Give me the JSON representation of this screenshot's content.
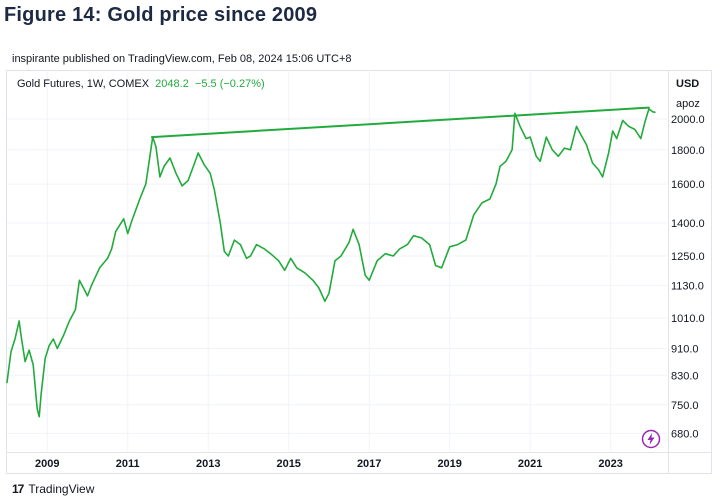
{
  "figure_title": "Figure 14: Gold price since 2009",
  "publisher_line": "inspirante published on TradingView.com, Feb 08, 2024 15:06 UTC+8",
  "legend": {
    "symbol": "Gold Futures, 1W, COMEX",
    "last": "2048.2",
    "change": "−5.5 (−0.27%)"
  },
  "axis": {
    "currency": "USD",
    "timezone_label": "apoz"
  },
  "footer": {
    "brand": "TradingView",
    "logo_mark": "17"
  },
  "colors": {
    "line": "#22ab3c",
    "grid": "#f0f3fa",
    "text": "#131722"
  },
  "icons": {
    "brand": "tradingview-logo-icon",
    "alert": "lightning-bolt-icon"
  },
  "chart_data": {
    "type": "line",
    "title": "Figure 14: Gold price since 2009",
    "y_scale": "log",
    "y_ticks": [
      680,
      750,
      830,
      910,
      1010,
      1130,
      1250,
      1400,
      1600,
      1800,
      2000
    ],
    "y_tick_labels": [
      "680.0",
      "750.0",
      "830.0",
      "910.0",
      "1010.0",
      "1130.0",
      "1250.0",
      "1400.0",
      "1600.0",
      "1800.0",
      "2000.0"
    ],
    "x_ticks": [
      2009,
      2011,
      2013,
      2015,
      2017,
      2019,
      2021,
      2023
    ],
    "x_tick_labels": [
      "2009",
      "2011",
      "2013",
      "2015",
      "2017",
      "2019",
      "2021",
      "2023"
    ],
    "xlim": [
      2008.0,
      2024.4
    ],
    "ylim": [
      640,
      2150
    ],
    "grid": true,
    "series": [
      {
        "x": [
          2008.0,
          2008.1,
          2008.2,
          2008.3,
          2008.35,
          2008.45,
          2008.55,
          2008.65,
          2008.75,
          2008.8,
          2008.85,
          2008.95,
          2009.05,
          2009.15,
          2009.25,
          2009.4,
          2009.55,
          2009.7,
          2009.8,
          2009.9,
          2010.0,
          2010.1,
          2010.3,
          2010.5,
          2010.6,
          2010.7,
          2010.9,
          2011.0,
          2011.1,
          2011.3,
          2011.45,
          2011.55,
          2011.62,
          2011.7,
          2011.8,
          2011.9,
          2012.05,
          2012.2,
          2012.35,
          2012.5,
          2012.6,
          2012.75,
          2012.9,
          2013.05,
          2013.15,
          2013.3,
          2013.4,
          2013.5,
          2013.65,
          2013.8,
          2013.95,
          2014.05,
          2014.2,
          2014.4,
          2014.55,
          2014.75,
          2014.9,
          2015.05,
          2015.2,
          2015.4,
          2015.6,
          2015.75,
          2015.9,
          2016.0,
          2016.15,
          2016.3,
          2016.5,
          2016.6,
          2016.75,
          2016.9,
          2017.0,
          2017.2,
          2017.4,
          2017.6,
          2017.75,
          2017.95,
          2018.1,
          2018.3,
          2018.5,
          2018.65,
          2018.8,
          2019.0,
          2019.2,
          2019.4,
          2019.6,
          2019.8,
          2020.0,
          2020.15,
          2020.25,
          2020.4,
          2020.55,
          2020.62,
          2020.75,
          2020.9,
          2021.0,
          2021.15,
          2021.25,
          2021.4,
          2021.55,
          2021.7,
          2021.85,
          2022.0,
          2022.15,
          2022.25,
          2022.4,
          2022.55,
          2022.7,
          2022.8,
          2022.95,
          2023.05,
          2023.15,
          2023.3,
          2023.45,
          2023.6,
          2023.75,
          2023.85,
          2023.95,
          2024.05,
          2024.1
        ],
        "values": [
          810,
          900,
          940,
          1000,
          950,
          870,
          905,
          860,
          740,
          720,
          780,
          880,
          920,
          940,
          910,
          950,
          1000,
          1040,
          1150,
          1120,
          1090,
          1130,
          1200,
          1240,
          1280,
          1360,
          1420,
          1350,
          1410,
          1520,
          1600,
          1760,
          1880,
          1820,
          1640,
          1700,
          1750,
          1660,
          1590,
          1620,
          1680,
          1780,
          1710,
          1660,
          1570,
          1400,
          1270,
          1250,
          1320,
          1300,
          1240,
          1250,
          1300,
          1280,
          1260,
          1230,
          1190,
          1240,
          1200,
          1180,
          1150,
          1120,
          1070,
          1100,
          1230,
          1250,
          1310,
          1370,
          1300,
          1170,
          1150,
          1230,
          1260,
          1250,
          1280,
          1300,
          1340,
          1330,
          1300,
          1210,
          1200,
          1290,
          1300,
          1320,
          1440,
          1500,
          1520,
          1600,
          1700,
          1730,
          1800,
          2040,
          1950,
          1870,
          1880,
          1760,
          1730,
          1880,
          1800,
          1760,
          1810,
          1800,
          1950,
          1900,
          1830,
          1720,
          1680,
          1640,
          1780,
          1920,
          1870,
          1990,
          1950,
          1930,
          1870,
          1980,
          2070,
          2050,
          2048
        ]
      },
      {
        "name": "",
        "x": [
          2011.6,
          2023.95
        ],
        "values": [
          1880,
          2080
        ]
      }
    ]
  }
}
